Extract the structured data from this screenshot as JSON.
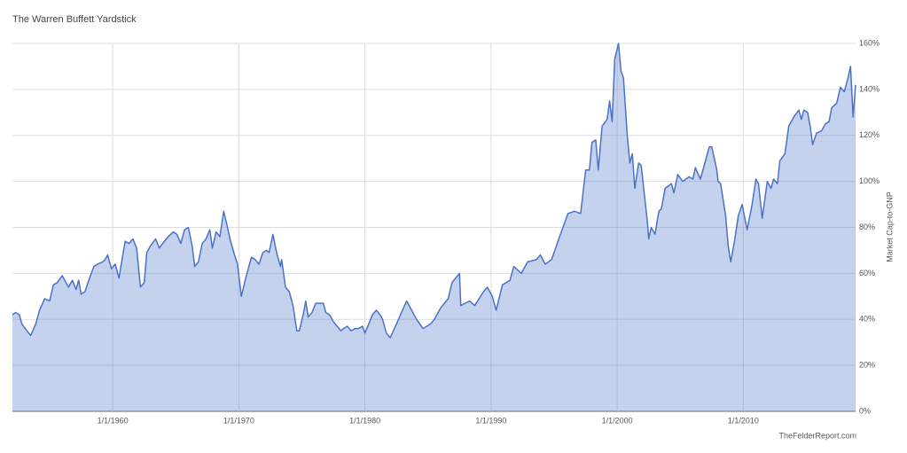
{
  "chart_data": {
    "type": "area",
    "title": "The Warren Buffett Yardstick",
    "y_label": "Market Cap-to-GNP",
    "source": "TheFelderReport.com",
    "color": "#4a72c8",
    "grid": true,
    "y_axis_side": "right",
    "xlim": [
      1952.05,
      2018.9
    ],
    "xticks": [
      {
        "value": 1960,
        "label": "1/1/1960"
      },
      {
        "value": 1970,
        "label": "1/1/1970"
      },
      {
        "value": 1980,
        "label": "1/1/1980"
      },
      {
        "value": 1990,
        "label": "1/1/1990"
      },
      {
        "value": 2000,
        "label": "1/1/2000"
      },
      {
        "value": 2010,
        "label": "1/1/2010"
      }
    ],
    "ylim": [
      0,
      160
    ],
    "yticks": [
      {
        "value": 0,
        "label": "0%"
      },
      {
        "value": 20,
        "label": "20%"
      },
      {
        "value": 40,
        "label": "40%"
      },
      {
        "value": 60,
        "label": "60%"
      },
      {
        "value": 80,
        "label": "80%"
      },
      {
        "value": 100,
        "label": "100%"
      },
      {
        "value": 120,
        "label": "120%"
      },
      {
        "value": 140,
        "label": "140%"
      },
      {
        "value": 160,
        "label": "160%"
      }
    ],
    "x": [
      1952.05,
      1952.3,
      1952.6,
      1952.8,
      1953.2,
      1953.5,
      1953.9,
      1954.2,
      1954.6,
      1955.0,
      1955.3,
      1955.6,
      1956.0,
      1956.3,
      1956.5,
      1956.8,
      1957.1,
      1957.3,
      1957.5,
      1957.8,
      1958.1,
      1958.5,
      1958.8,
      1959.2,
      1959.4,
      1959.6,
      1959.9,
      1960.2,
      1960.5,
      1960.8,
      1961.0,
      1961.3,
      1961.6,
      1961.9,
      1962.2,
      1962.5,
      1962.7,
      1963.0,
      1963.4,
      1963.7,
      1964.1,
      1964.4,
      1964.8,
      1965.1,
      1965.4,
      1965.7,
      1966.0,
      1966.3,
      1966.5,
      1966.8,
      1967.1,
      1967.4,
      1967.7,
      1967.9,
      1968.2,
      1968.5,
      1968.8,
      1969.1,
      1969.3,
      1969.6,
      1969.9,
      1970.2,
      1970.5,
      1970.8,
      1971.0,
      1971.3,
      1971.6,
      1971.9,
      1972.2,
      1972.4,
      1972.7,
      1973.0,
      1973.3,
      1973.4,
      1973.7,
      1974.0,
      1974.3,
      1974.6,
      1974.8,
      1975.1,
      1975.3,
      1975.5,
      1975.8,
      1976.1,
      1976.4,
      1976.7,
      1976.9,
      1977.2,
      1977.5,
      1977.8,
      1978.1,
      1978.3,
      1978.6,
      1978.9,
      1979.2,
      1979.5,
      1979.8,
      1980.0,
      1980.3,
      1980.6,
      1980.9,
      1981.2,
      1981.4,
      1981.7,
      1982.0,
      1982.5,
      1983.3,
      1984.1,
      1984.6,
      1985.2,
      1985.5,
      1986.0,
      1986.6,
      1986.9,
      1987.5,
      1987.6,
      1988.3,
      1988.7,
      1989.4,
      1989.7,
      1990.1,
      1990.4,
      1990.9,
      1991.5,
      1991.8,
      1992.4,
      1992.9,
      1993.6,
      1993.9,
      1994.3,
      1994.8,
      1995.3,
      1996.1,
      1996.6,
      1997.1,
      1997.5,
      1997.8,
      1998.0,
      1998.3,
      1998.5,
      1998.8,
      1999.2,
      1999.4,
      1999.6,
      1999.8,
      2000.1,
      2000.3,
      2000.5,
      2000.8,
      2001.0,
      2001.2,
      2001.4,
      2001.7,
      2001.9,
      2002.4,
      2002.5,
      2002.7,
      2003.0,
      2003.3,
      2003.5,
      2003.8,
      2004.3,
      2004.5,
      2004.8,
      2005.2,
      2005.7,
      2006.0,
      2006.2,
      2006.6,
      2006.9,
      2007.3,
      2007.5,
      2007.9,
      2008.0,
      2008.2,
      2008.6,
      2008.8,
      2009.0,
      2009.3,
      2009.6,
      2009.9,
      2010.3,
      2010.7,
      2011.0,
      2011.2,
      2011.5,
      2011.9,
      2012.2,
      2012.4,
      2012.7,
      2012.9,
      2013.3,
      2013.6,
      2014.0,
      2014.4,
      2014.6,
      2014.8,
      2015.1,
      2015.3,
      2015.5,
      2015.8,
      2016.2,
      2016.5,
      2016.8,
      2017.0,
      2017.4,
      2017.7,
      2018.0,
      2018.3,
      2018.5,
      2018.7,
      2018.9
    ],
    "values": [
      42,
      43,
      42,
      38,
      35,
      33,
      38,
      44,
      49,
      48,
      55,
      56,
      59,
      56,
      54,
      57,
      53,
      57,
      51,
      52,
      57,
      63,
      64,
      65,
      66,
      68,
      62,
      64,
      58,
      68,
      74,
      73,
      75,
      71,
      54,
      56,
      69,
      72,
      75,
      71,
      74,
      76,
      78,
      77,
      73,
      79,
      80,
      72,
      63,
      65,
      73,
      75,
      79,
      71,
      78,
      76,
      87,
      80,
      75,
      69,
      64,
      50,
      57,
      63,
      67,
      66,
      64,
      69,
      70,
      69,
      77,
      69,
      63,
      66,
      54,
      52,
      46,
      35,
      35,
      42,
      48,
      41,
      43,
      47,
      47,
      47,
      43,
      42,
      39,
      37,
      35,
      36,
      37,
      35,
      36,
      36,
      37,
      34,
      38,
      42,
      44,
      42,
      40,
      34,
      32,
      38,
      48,
      40,
      36,
      38,
      40,
      45,
      49,
      56,
      60,
      46,
      48,
      46,
      52,
      54,
      50,
      44,
      55,
      57,
      63,
      60,
      65,
      66,
      68,
      64,
      66,
      74,
      86,
      87,
      86,
      105,
      105,
      117,
      118,
      105,
      124,
      127,
      135,
      126,
      153,
      160,
      148,
      145,
      120,
      108,
      112,
      97,
      108,
      107,
      82,
      75,
      80,
      77,
      87,
      88,
      97,
      99,
      95,
      103,
      100,
      102,
      101,
      106,
      101,
      107,
      115,
      115,
      105,
      100,
      99,
      85,
      72,
      65,
      74,
      85,
      90,
      79,
      90,
      101,
      99,
      84,
      100,
      97,
      101,
      99,
      109,
      112,
      124,
      128,
      131,
      127,
      131,
      130,
      124,
      116,
      121,
      122,
      125,
      126,
      132,
      134,
      141,
      139,
      145,
      150,
      128,
      142
    ]
  }
}
